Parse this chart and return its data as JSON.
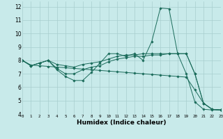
{
  "background_color": "#c8eaea",
  "line_color": "#1a6b5a",
  "xlim": [
    0,
    23
  ],
  "ylim": [
    4,
    12.4
  ],
  "yticks": [
    4,
    5,
    6,
    7,
    8,
    9,
    10,
    11,
    12
  ],
  "xticks": [
    0,
    1,
    2,
    3,
    4,
    5,
    6,
    7,
    8,
    9,
    10,
    11,
    12,
    13,
    14,
    15,
    16,
    17,
    18,
    19,
    20,
    21,
    22,
    23
  ],
  "xlabel": "Humidex (Indice chaleur)",
  "series": [
    {
      "x": [
        0,
        1,
        2,
        3,
        4,
        5,
        6,
        7,
        8,
        9,
        10,
        11,
        12,
        13,
        14,
        15,
        16,
        17,
        18,
        19,
        20,
        21,
        22,
        23
      ],
      "y": [
        8.0,
        7.6,
        7.8,
        8.0,
        7.3,
        6.8,
        6.5,
        6.5,
        7.1,
        7.8,
        8.5,
        8.5,
        8.3,
        8.5,
        8.0,
        9.4,
        11.9,
        11.85,
        8.5,
        7.0,
        4.9,
        4.35,
        4.3,
        4.3
      ]
    },
    {
      "x": [
        0,
        1,
        2,
        3,
        4,
        5,
        6,
        7,
        8,
        9,
        10,
        11,
        12,
        13,
        14,
        15,
        16,
        17,
        18,
        19,
        20,
        21,
        22,
        23
      ],
      "y": [
        8.0,
        7.6,
        7.8,
        8.0,
        7.7,
        7.6,
        7.5,
        7.7,
        7.8,
        7.9,
        8.1,
        8.3,
        8.4,
        8.4,
        8.5,
        8.5,
        8.5,
        8.5,
        8.5,
        8.5,
        7.0,
        4.8,
        4.35,
        4.3
      ]
    },
    {
      "x": [
        0,
        1,
        2,
        3,
        4,
        5,
        6,
        7,
        8,
        9,
        10,
        11,
        12,
        13,
        14,
        15,
        16,
        17,
        18,
        19,
        20,
        21,
        22,
        23
      ],
      "y": [
        8.0,
        7.6,
        7.8,
        8.0,
        7.4,
        7.0,
        7.0,
        7.3,
        7.5,
        7.6,
        7.9,
        8.1,
        8.2,
        8.3,
        8.3,
        8.4,
        8.4,
        8.5,
        8.5,
        8.5,
        7.0,
        4.8,
        4.35,
        4.3
      ]
    },
    {
      "x": [
        0,
        1,
        2,
        3,
        4,
        5,
        6,
        7,
        8,
        9,
        10,
        11,
        12,
        13,
        14,
        15,
        16,
        17,
        18,
        19,
        20,
        21,
        22,
        23
      ],
      "y": [
        8.0,
        7.65,
        7.6,
        7.55,
        7.5,
        7.45,
        7.4,
        7.35,
        7.3,
        7.25,
        7.2,
        7.15,
        7.1,
        7.05,
        7.0,
        6.95,
        6.9,
        6.85,
        6.8,
        6.75,
        5.8,
        4.8,
        4.35,
        4.3
      ]
    }
  ]
}
